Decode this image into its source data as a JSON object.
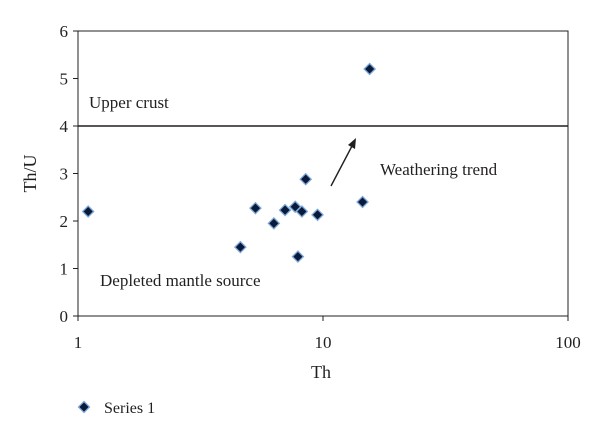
{
  "chart_data": {
    "type": "scatter",
    "xscale": "log",
    "xlim": [
      1,
      100
    ],
    "ylim": [
      0,
      6
    ],
    "xticks": [
      "1",
      "10",
      "100"
    ],
    "yticks": [
      "0",
      "1",
      "2",
      "3",
      "4",
      "5",
      "6"
    ],
    "xlabel": "Th",
    "ylabel": "Th/U",
    "grid": false,
    "legend_position": "bottom-left",
    "reference_line_y": 4,
    "series": [
      {
        "name": "Series 1",
        "marker": "diamond",
        "color": "#0a1a3a",
        "edge_color": "#7fa8d8",
        "points": [
          {
            "x": 1.1,
            "y": 2.2
          },
          {
            "x": 4.6,
            "y": 1.45
          },
          {
            "x": 5.3,
            "y": 2.27
          },
          {
            "x": 6.3,
            "y": 1.95
          },
          {
            "x": 7.0,
            "y": 2.23
          },
          {
            "x": 7.7,
            "y": 2.3
          },
          {
            "x": 7.9,
            "y": 1.25
          },
          {
            "x": 8.2,
            "y": 2.2
          },
          {
            "x": 8.5,
            "y": 2.88
          },
          {
            "x": 9.5,
            "y": 2.13
          },
          {
            "x": 14.5,
            "y": 2.4
          },
          {
            "x": 15.5,
            "y": 5.2
          }
        ]
      }
    ],
    "annotations": [
      {
        "id": "upper",
        "text": "Upper crust"
      },
      {
        "id": "weathering",
        "text": "Weathering trend"
      },
      {
        "id": "depleted",
        "text": "Depleted mantle source"
      }
    ]
  },
  "colors": {
    "axis": "#231f20",
    "marker_fill": "#0a1a3a",
    "marker_edge": "#7fa8d8"
  }
}
